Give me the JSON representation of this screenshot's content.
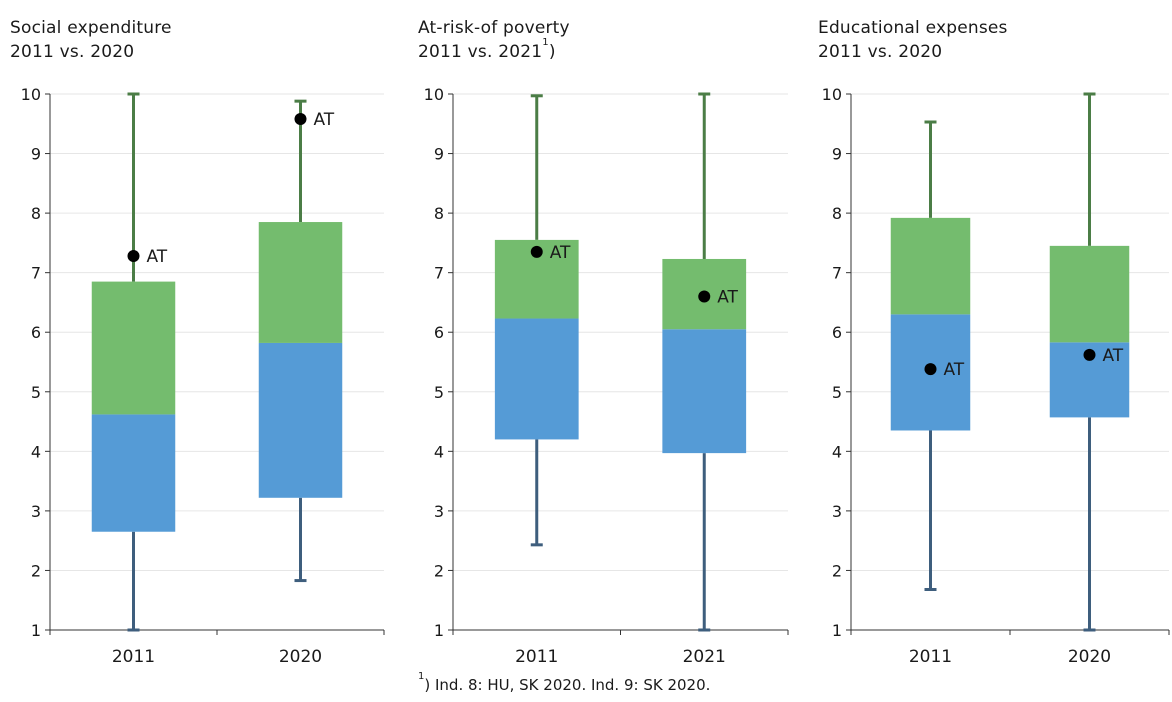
{
  "colors": {
    "upper_box": "#74bc6e",
    "lower_box": "#559bd6",
    "upper_whisker": "#4b7d46",
    "lower_whisker": "#3e5e7d",
    "marker": "#000000",
    "axis": "#333333",
    "grid": "#e6e6e6"
  },
  "footnote": {
    "marker": "1",
    "text": ") Ind. 8: HU, SK 2020. Ind. 9: SK 2020."
  },
  "chart_data": [
    {
      "type": "box",
      "title_line1": "Social expenditure",
      "title_line2": "2011 vs. 2020",
      "title_sup": "",
      "title_after_sup": "",
      "ylim": [
        1,
        10
      ],
      "yticks": [
        "1",
        "2",
        "3",
        "4",
        "5",
        "6",
        "7",
        "8",
        "9",
        "10"
      ],
      "grid": true,
      "categories": [
        "2011",
        "2020"
      ],
      "boxes": [
        {
          "category": "2011",
          "min": 1.0,
          "q1": 2.65,
          "median": 4.62,
          "q3": 6.85,
          "max": 10.0,
          "at": 7.28,
          "at_label": "AT"
        },
        {
          "category": "2020",
          "min": 1.83,
          "q1": 3.22,
          "median": 5.82,
          "q3": 7.85,
          "max": 9.88,
          "at": 9.58,
          "at_label": "AT"
        }
      ]
    },
    {
      "type": "box",
      "title_line1": "At-risk-of poverty",
      "title_line2": "2011 vs. 2021",
      "title_sup": "1",
      "title_after_sup": ")",
      "ylim": [
        1,
        10
      ],
      "yticks": [
        "1",
        "2",
        "3",
        "4",
        "5",
        "6",
        "7",
        "8",
        "9",
        "10"
      ],
      "grid": true,
      "categories": [
        "2011",
        "2021"
      ],
      "boxes": [
        {
          "category": "2011",
          "min": 2.43,
          "q1": 4.2,
          "median": 6.23,
          "q3": 7.55,
          "max": 9.97,
          "at": 7.35,
          "at_label": "AT"
        },
        {
          "category": "2021",
          "min": 1.0,
          "q1": 3.97,
          "median": 6.05,
          "q3": 7.23,
          "max": 10.0,
          "at": 6.6,
          "at_label": "AT"
        }
      ]
    },
    {
      "type": "box",
      "title_line1": "Educational expenses",
      "title_line2": "2011 vs. 2020",
      "title_sup": "",
      "title_after_sup": "",
      "ylim": [
        1,
        10
      ],
      "yticks": [
        "1",
        "2",
        "3",
        "4",
        "5",
        "6",
        "7",
        "8",
        "9",
        "10"
      ],
      "grid": true,
      "categories": [
        "2011",
        "2020"
      ],
      "boxes": [
        {
          "category": "2011",
          "min": 1.68,
          "q1": 4.35,
          "median": 6.3,
          "q3": 7.92,
          "max": 9.53,
          "at": 5.38,
          "at_label": "AT"
        },
        {
          "category": "2020",
          "min": 1.0,
          "q1": 4.57,
          "median": 5.83,
          "q3": 7.45,
          "max": 10.0,
          "at": 5.62,
          "at_label": "AT"
        }
      ]
    }
  ]
}
